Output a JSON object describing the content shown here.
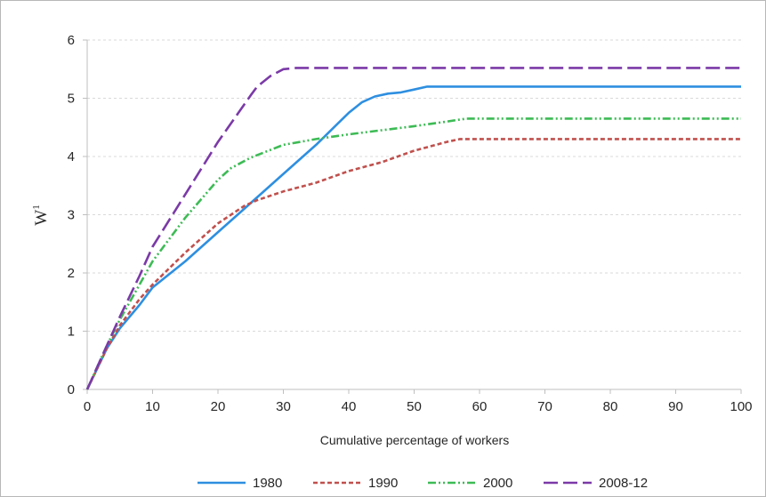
{
  "chart_data": {
    "type": "line",
    "title": "",
    "xlabel": "Cumulative percentage of workers",
    "ylabel": "W",
    "ylabel_superscript": "1",
    "xlim": [
      0,
      100
    ],
    "ylim": [
      0,
      6
    ],
    "x_ticks": [
      "0",
      "10",
      "20",
      "30",
      "40",
      "50",
      "60",
      "70",
      "80",
      "90",
      "100"
    ],
    "y_ticks": [
      "0",
      "1",
      "2",
      "3",
      "4",
      "5",
      "6"
    ],
    "grid": "horizontal dashed",
    "legend_position": "bottom",
    "series": [
      {
        "name": "1980",
        "color": "#2e8fe0",
        "dash": "solid",
        "x": [
          0,
          3,
          5,
          8,
          10,
          15,
          20,
          25,
          30,
          35,
          40,
          42,
          44,
          46,
          48,
          50,
          52,
          60,
          70,
          80,
          90,
          100
        ],
        "y": [
          0,
          0.7,
          1.05,
          1.45,
          1.75,
          2.2,
          2.7,
          3.2,
          3.7,
          4.2,
          4.75,
          4.93,
          5.03,
          5.08,
          5.1,
          5.15,
          5.2,
          5.2,
          5.2,
          5.2,
          5.2,
          5.2
        ]
      },
      {
        "name": "1990",
        "color": "#c0504d",
        "dash": "short",
        "x": [
          0,
          3,
          5,
          8,
          10,
          15,
          20,
          24,
          26,
          30,
          35,
          40,
          45,
          50,
          55,
          57,
          60,
          70,
          80,
          90,
          100
        ],
        "y": [
          0,
          0.7,
          1.1,
          1.55,
          1.8,
          2.35,
          2.85,
          3.15,
          3.25,
          3.4,
          3.55,
          3.75,
          3.9,
          4.1,
          4.25,
          4.3,
          4.3,
          4.3,
          4.3,
          4.3,
          4.3
        ]
      },
      {
        "name": "2000",
        "color": "#3dbb55",
        "dash": "dashdotdot",
        "x": [
          0,
          3,
          5,
          8,
          10,
          15,
          20,
          22,
          25,
          30,
          35,
          40,
          45,
          50,
          55,
          58,
          60,
          70,
          80,
          90,
          100
        ],
        "y": [
          0,
          0.75,
          1.2,
          1.8,
          2.2,
          2.95,
          3.6,
          3.8,
          3.98,
          4.2,
          4.3,
          4.38,
          4.45,
          4.52,
          4.6,
          4.65,
          4.65,
          4.65,
          4.65,
          4.65,
          4.65
        ]
      },
      {
        "name": "2008-12",
        "color": "#7b3aa7",
        "dash": "long",
        "x": [
          0,
          3,
          5,
          8,
          10,
          15,
          20,
          25,
          26,
          28,
          30,
          32,
          40,
          50,
          60,
          70,
          80,
          90,
          100
        ],
        "y": [
          0,
          0.75,
          1.25,
          1.95,
          2.45,
          3.35,
          4.25,
          5.05,
          5.2,
          5.38,
          5.5,
          5.52,
          5.52,
          5.52,
          5.52,
          5.52,
          5.52,
          5.52,
          5.52
        ]
      }
    ]
  }
}
